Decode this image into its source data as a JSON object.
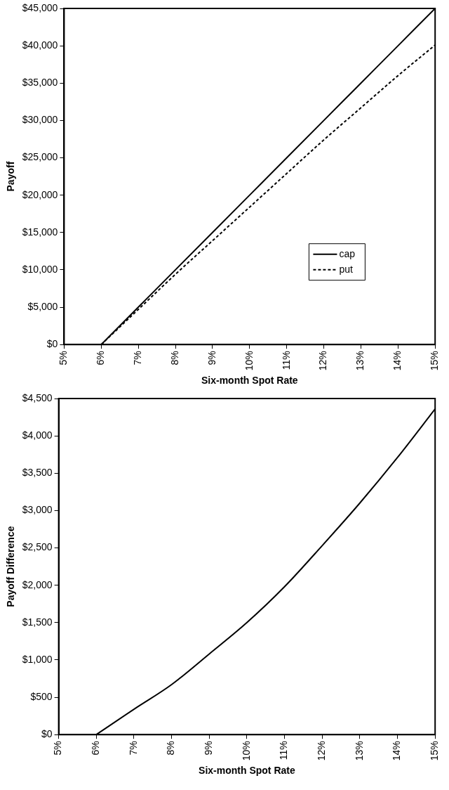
{
  "chart_data": [
    {
      "type": "line",
      "xlabel": "Six-month Spot Rate",
      "ylabel": "Payoff",
      "x": [
        6,
        7,
        8,
        9,
        10,
        11,
        12,
        13,
        14,
        15
      ],
      "series": [
        {
          "name": "cap",
          "color": "#000000",
          "line_style": "solid",
          "values": [
            0,
            5000,
            10000,
            15000,
            20000,
            25000,
            30000,
            35000,
            40000,
            45000
          ]
        },
        {
          "name": "put",
          "color": "#000000",
          "line_style": "dashed",
          "values": [
            0,
            4700,
            9400,
            13900,
            18400,
            22900,
            27400,
            31700,
            36000,
            40100
          ]
        }
      ],
      "xlim": [
        5,
        15
      ],
      "xticks": [
        {
          "value": 5,
          "label": "5%"
        },
        {
          "value": 6,
          "label": "6%"
        },
        {
          "value": 7,
          "label": "7%"
        },
        {
          "value": 8,
          "label": "8%"
        },
        {
          "value": 9,
          "label": "9%"
        },
        {
          "value": 10,
          "label": "10%"
        },
        {
          "value": 11,
          "label": "11%"
        },
        {
          "value": 12,
          "label": "12%"
        },
        {
          "value": 13,
          "label": "13%"
        },
        {
          "value": 14,
          "label": "14%"
        },
        {
          "value": 15,
          "label": "15%"
        }
      ],
      "ylim": [
        0,
        45000
      ],
      "yticks": [
        {
          "value": 0,
          "label": "$0"
        },
        {
          "value": 5000,
          "label": "$5,000"
        },
        {
          "value": 10000,
          "label": "$10,000"
        },
        {
          "value": 15000,
          "label": "$15,000"
        },
        {
          "value": 20000,
          "label": "$20,000"
        },
        {
          "value": 25000,
          "label": "$25,000"
        },
        {
          "value": 30000,
          "label": "$30,000"
        },
        {
          "value": 35000,
          "label": "$35,000"
        },
        {
          "value": 40000,
          "label": "$40,000"
        },
        {
          "value": 45000,
          "label": "$45,000"
        }
      ],
      "grid": false,
      "legend": "bottom right",
      "marker": "none"
    },
    {
      "type": "line",
      "xlabel": "Six-month Spot Rate",
      "ylabel": "Payoff Difference",
      "x": [
        6,
        7,
        8,
        9,
        10,
        11,
        12,
        13,
        14,
        15
      ],
      "values": [
        0,
        340,
        670,
        1080,
        1500,
        1980,
        2530,
        3100,
        3710,
        4360
      ],
      "color": "#000000",
      "xlim": [
        5,
        15
      ],
      "xticks": [
        {
          "value": 5,
          "label": "5%"
        },
        {
          "value": 6,
          "label": "6%"
        },
        {
          "value": 7,
          "label": "7%"
        },
        {
          "value": 8,
          "label": "8%"
        },
        {
          "value": 9,
          "label": "9%"
        },
        {
          "value": 10,
          "label": "10%"
        },
        {
          "value": 11,
          "label": "11%"
        },
        {
          "value": 12,
          "label": "12%"
        },
        {
          "value": 13,
          "label": "13%"
        },
        {
          "value": 14,
          "label": "14%"
        },
        {
          "value": 15,
          "label": "15%"
        }
      ],
      "ylim": [
        0,
        4500
      ],
      "yticks": [
        {
          "value": 0,
          "label": "$0"
        },
        {
          "value": 500,
          "label": "$500"
        },
        {
          "value": 1000,
          "label": "$1,000"
        },
        {
          "value": 1500,
          "label": "$1,500"
        },
        {
          "value": 2000,
          "label": "$2,000"
        },
        {
          "value": 2500,
          "label": "$2,500"
        },
        {
          "value": 3000,
          "label": "$3,000"
        },
        {
          "value": 3500,
          "label": "$3,500"
        },
        {
          "value": 4000,
          "label": "$4,000"
        },
        {
          "value": 4500,
          "label": "$4,500"
        }
      ],
      "grid": false,
      "legend": false,
      "marker": "none"
    }
  ]
}
